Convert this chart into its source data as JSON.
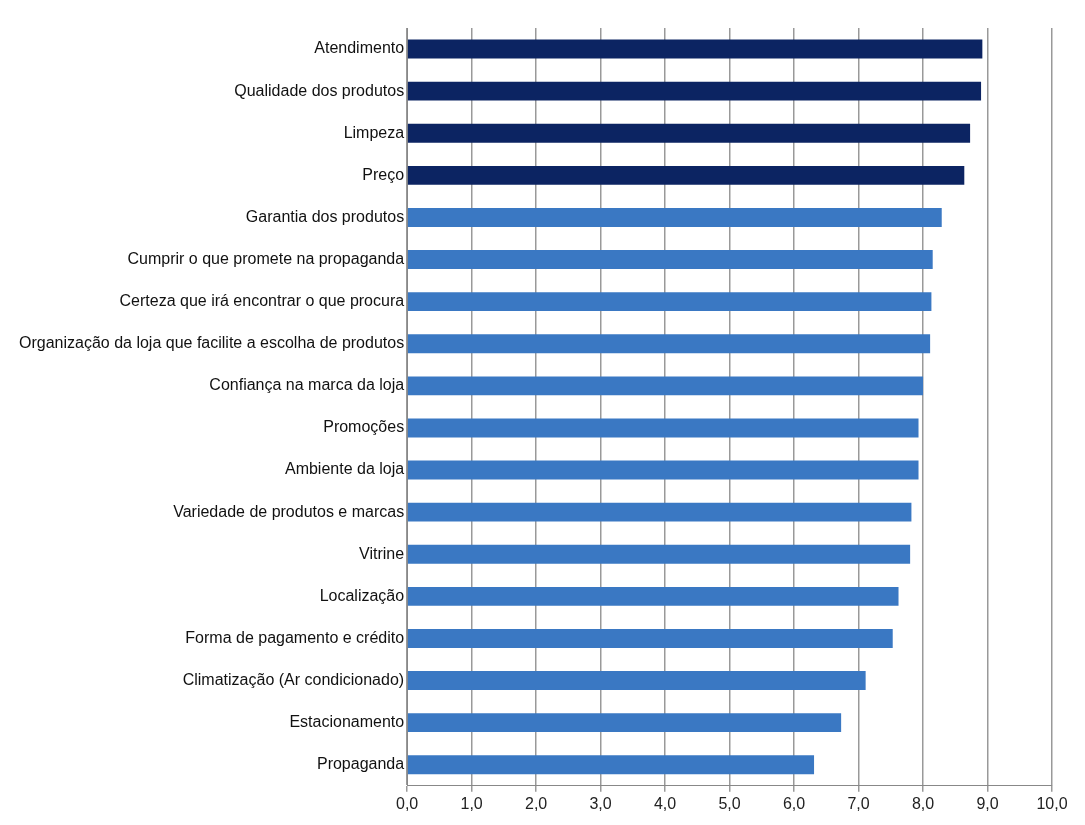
{
  "chart_data": {
    "type": "bar",
    "orientation": "horizontal",
    "categories": [
      "Atendimento",
      "Qualidade dos produtos",
      "Limpeza",
      "Preço",
      "Garantia dos produtos",
      "Cumprir o que promete na propaganda",
      "Certeza que irá encontrar o que procura",
      "Organização da loja que facilite a escolha de produtos",
      "Confiança na marca da loja",
      "Promoções",
      "Ambiente da loja",
      "Variedade de produtos e marcas",
      "Vitrine",
      "Localização",
      "Forma de pagamento e crédito",
      "Climatização (Ar condicionado)",
      "Estacionamento",
      "Propaganda"
    ],
    "values": [
      8.92,
      8.9,
      8.73,
      8.64,
      8.29,
      8.15,
      8.13,
      8.11,
      8.0,
      7.93,
      7.93,
      7.82,
      7.8,
      7.62,
      7.53,
      7.11,
      6.73,
      6.31
    ],
    "colors": [
      "#0c2462",
      "#0c2462",
      "#0c2462",
      "#0c2462",
      "#3a78c3",
      "#3a78c3",
      "#3a78c3",
      "#3a78c3",
      "#3a78c3",
      "#3a78c3",
      "#3a78c3",
      "#3a78c3",
      "#3a78c3",
      "#3a78c3",
      "#3a78c3",
      "#3a78c3",
      "#3a78c3",
      "#3a78c3"
    ],
    "xlim": [
      0,
      10
    ],
    "xticks": [
      {
        "value": 0,
        "label": "0,0"
      },
      {
        "value": 1,
        "label": "1,0"
      },
      {
        "value": 2,
        "label": "2,0"
      },
      {
        "value": 3,
        "label": "3,0"
      },
      {
        "value": 4,
        "label": "4,0"
      },
      {
        "value": 5,
        "label": "5,0"
      },
      {
        "value": 6,
        "label": "6,0"
      },
      {
        "value": 7,
        "label": "7,0"
      },
      {
        "value": 8,
        "label": "8,0"
      },
      {
        "value": 9,
        "label": "9,0"
      },
      {
        "value": 10,
        "label": "10,0"
      }
    ],
    "grid": "x",
    "legend": false
  }
}
